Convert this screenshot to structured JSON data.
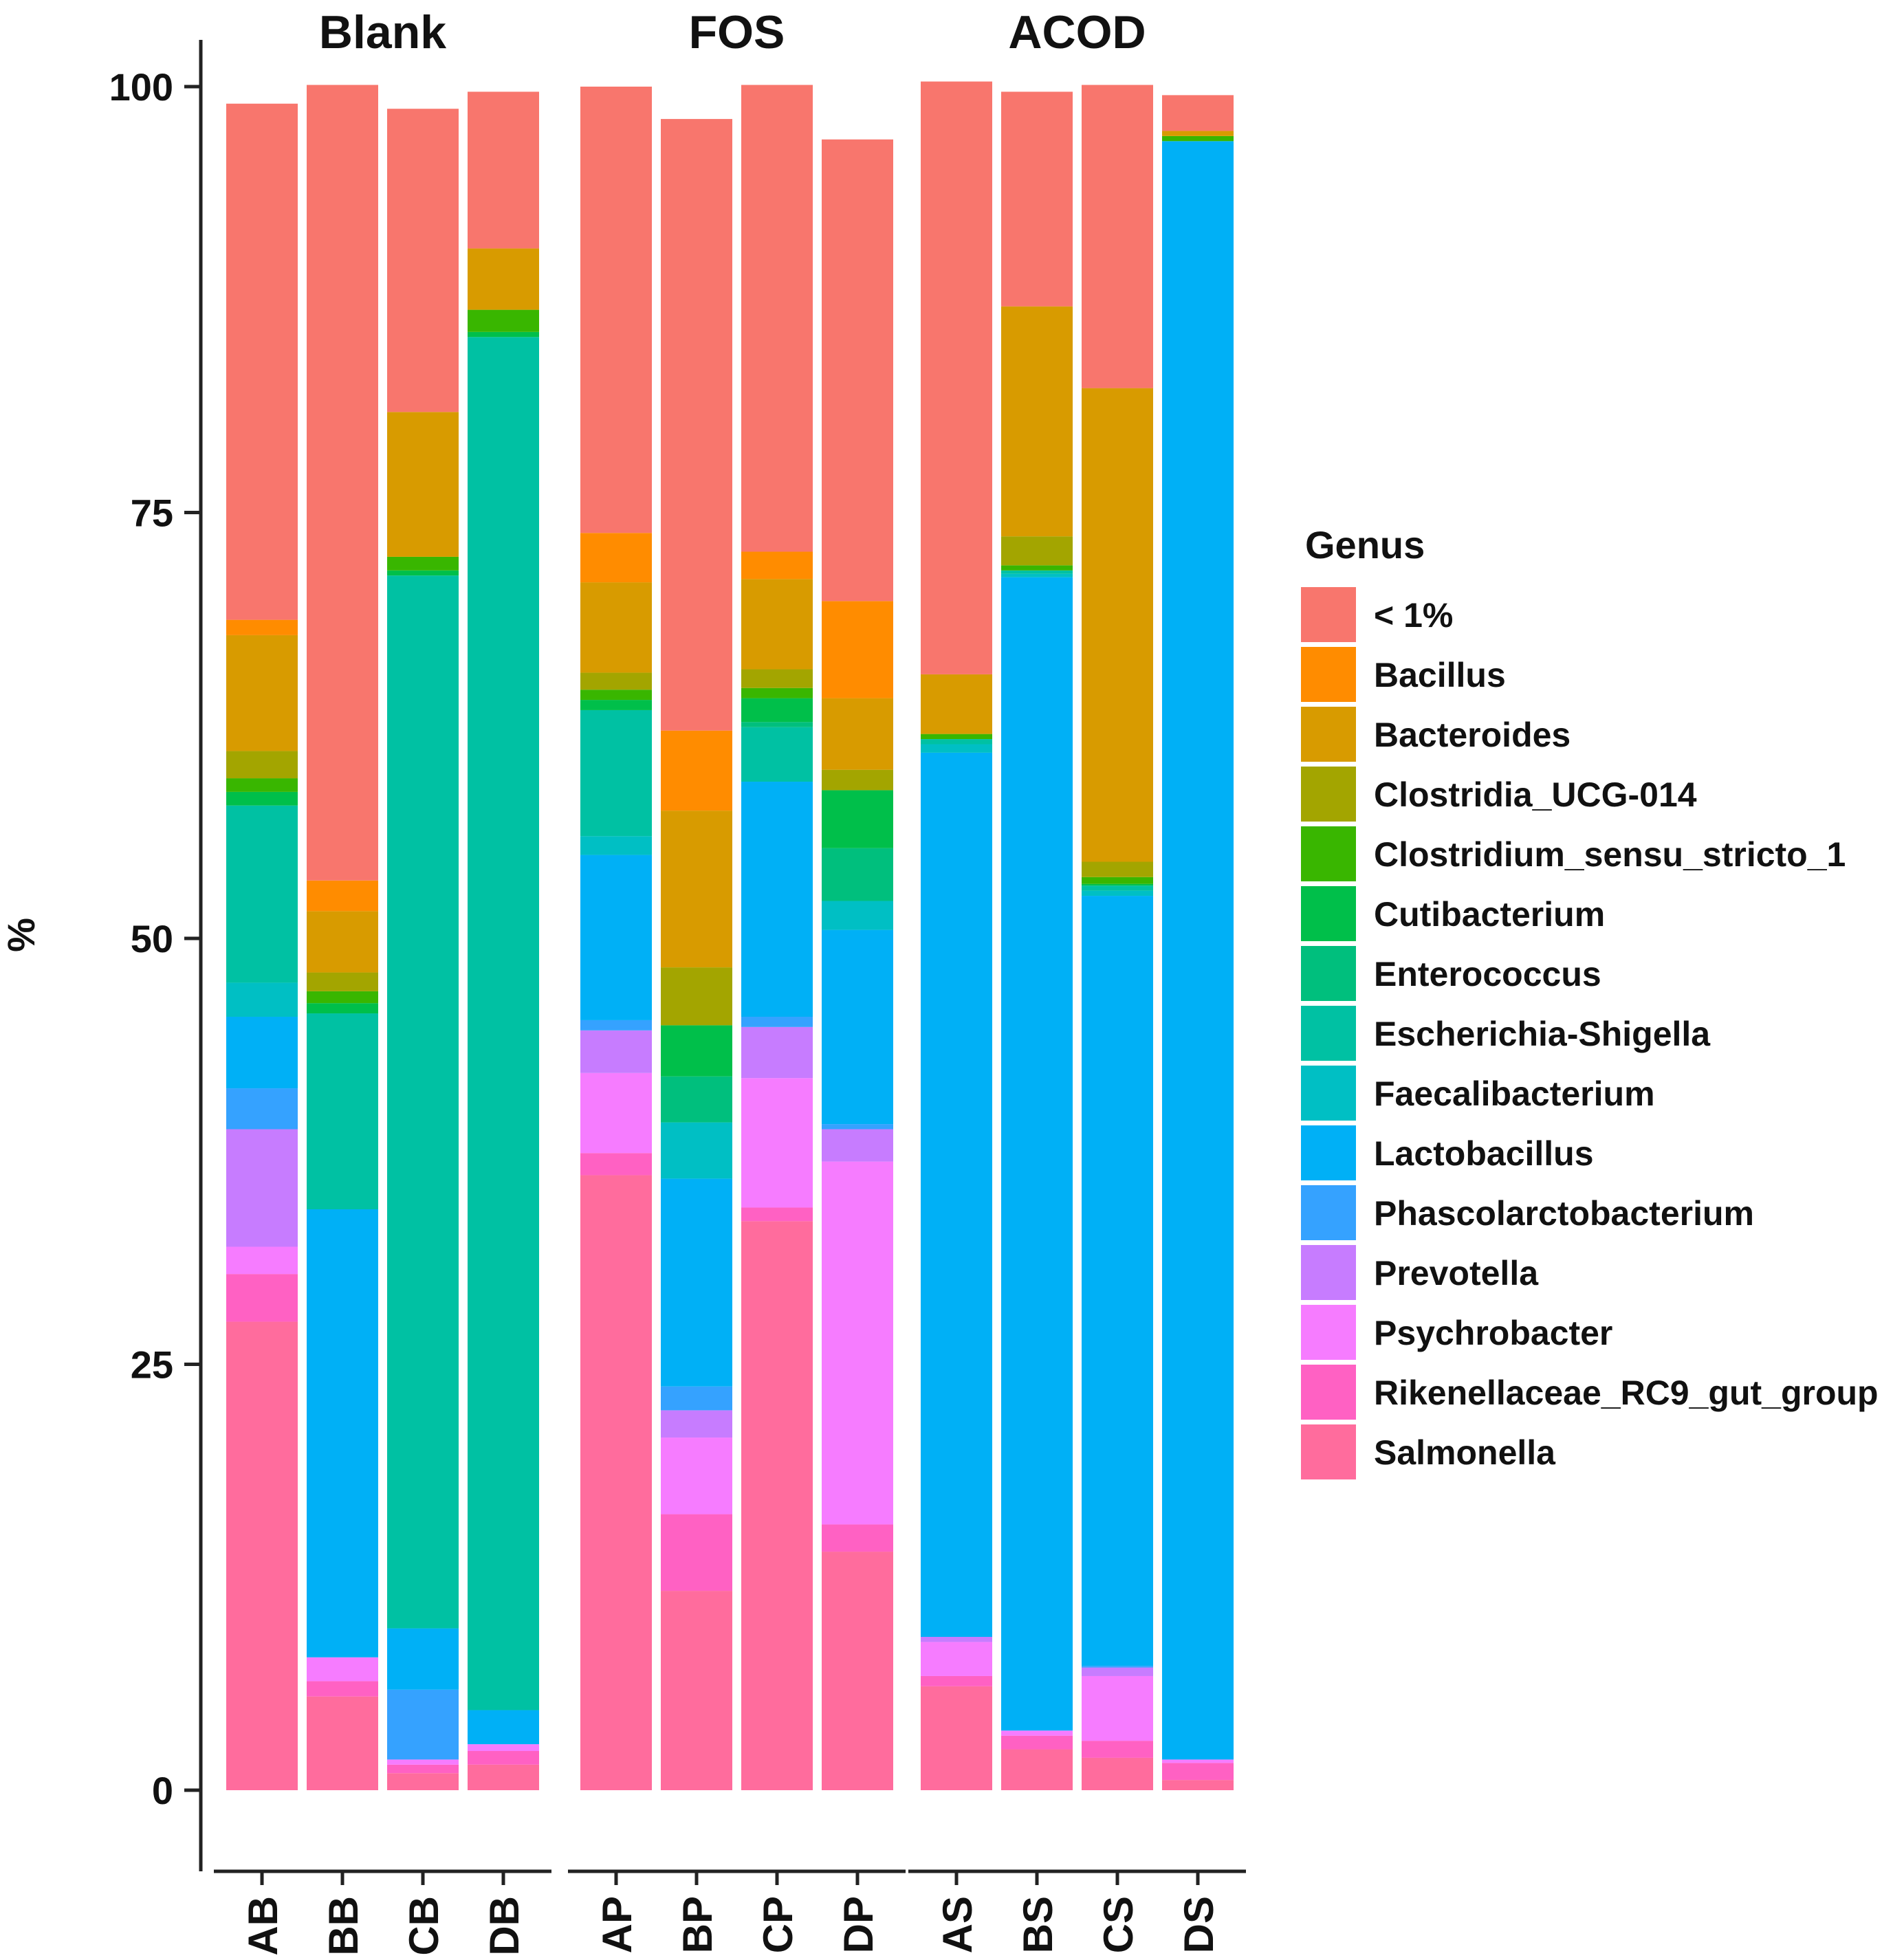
{
  "chart_data": {
    "type": "bar",
    "stacked": true,
    "ylabel": "%",
    "xlabel": "",
    "ylim": [
      0,
      100
    ],
    "yticks": [
      "0",
      "25",
      "50",
      "75",
      "100"
    ],
    "grid": false,
    "legend": {
      "title": "Genus",
      "placement": "right"
    },
    "facets": [
      {
        "title": "Blank",
        "samples": [
          "AB",
          "BB",
          "CB",
          "DB"
        ]
      },
      {
        "title": "FOS",
        "samples": [
          "AP",
          "BP",
          "CP",
          "DP"
        ]
      },
      {
        "title": "ACOD",
        "samples": [
          "AS",
          "BS",
          "CS",
          "DS"
        ]
      }
    ],
    "series": [
      {
        "name": "< 1%",
        "color": "#F8766D",
        "values": [
          30.3,
          46.7,
          17.8,
          9.2,
          26.2,
          35.9,
          27.4,
          27.1,
          34.8,
          12.6,
          17.8,
          2.1
        ]
      },
      {
        "name": "Bacillus",
        "color": "#FF8C00",
        "values": [
          0.9,
          1.8,
          0,
          0,
          2.9,
          4.7,
          1.6,
          5.7,
          0,
          0,
          0,
          0
        ]
      },
      {
        "name": "Bacteroides",
        "color": "#D89B00",
        "values": [
          6.8,
          3.6,
          8.5,
          3.6,
          5.3,
          9.2,
          5.3,
          4.2,
          3.5,
          13.5,
          27.8,
          0.3
        ]
      },
      {
        "name": "Clostridia_UCG-014",
        "color": "#A3A500",
        "values": [
          1.6,
          1.1,
          0,
          0,
          1.0,
          3.4,
          1.1,
          1.2,
          0,
          1.7,
          0.9,
          0
        ]
      },
      {
        "name": "Clostridium_sensu_stricto_1",
        "color": "#39B600",
        "values": [
          0.8,
          0.7,
          0.8,
          1.3,
          0.6,
          0,
          0.6,
          0,
          0.3,
          0.3,
          0.4,
          0.3
        ]
      },
      {
        "name": "Cutibacterium",
        "color": "#00BF4A",
        "values": [
          0.8,
          0.6,
          0.3,
          0.3,
          0.6,
          3.0,
          1.4,
          3.4,
          0,
          0,
          0.1,
          0
        ]
      },
      {
        "name": "Enterococcus",
        "color": "#00BF7D",
        "values": [
          0,
          0,
          0,
          0,
          0,
          2.7,
          0.3,
          3.1,
          0,
          0,
          0,
          0
        ]
      },
      {
        "name": "Escherichia-Shigella",
        "color": "#00C1A3",
        "values": [
          10.4,
          11.5,
          61.8,
          80.6,
          7.4,
          0,
          3.2,
          0,
          0.3,
          0.2,
          0.3,
          0
        ]
      },
      {
        "name": "Faecalibacterium",
        "color": "#00BFC4",
        "values": [
          2.0,
          0,
          0,
          0,
          1.1,
          3.3,
          0,
          1.7,
          0.5,
          0.2,
          0.3,
          0
        ]
      },
      {
        "name": "Lactobacillus",
        "color": "#00B0F6",
        "values": [
          4.2,
          26.3,
          3.6,
          2.0,
          9.7,
          12.2,
          13.8,
          11.4,
          51.9,
          67.7,
          45.2,
          95.0
        ]
      },
      {
        "name": "Phascolarctobacterium",
        "color": "#35A2FF",
        "values": [
          2.4,
          0,
          4.1,
          0,
          0.6,
          1.4,
          0.6,
          0.3,
          0,
          0,
          0.1,
          0
        ]
      },
      {
        "name": "Prevotella",
        "color": "#C77CFF",
        "values": [
          6.9,
          0,
          0,
          0,
          2.5,
          1.6,
          3.0,
          1.9,
          0.3,
          0,
          0.5,
          0
        ]
      },
      {
        "name": "Psychrobacter",
        "color": "#F67CFF",
        "values": [
          1.6,
          1.4,
          0.3,
          0.4,
          4.7,
          4.5,
          7.6,
          21.3,
          2.0,
          0.3,
          3.8,
          0.2
        ]
      },
      {
        "name": "Rikenellaceae_RC9_gut_group",
        "color": "#FF61C3",
        "values": [
          2.8,
          0.9,
          0.5,
          0.8,
          1.3,
          4.5,
          0.8,
          1.6,
          0.6,
          0.8,
          1.0,
          1.0
        ]
      },
      {
        "name": "Salmonella",
        "color": "#FF6C9D",
        "values": [
          27.5,
          5.5,
          1.0,
          1.5,
          36.1,
          11.7,
          33.4,
          14.0,
          6.1,
          2.4,
          1.9,
          0.6
        ]
      }
    ]
  }
}
